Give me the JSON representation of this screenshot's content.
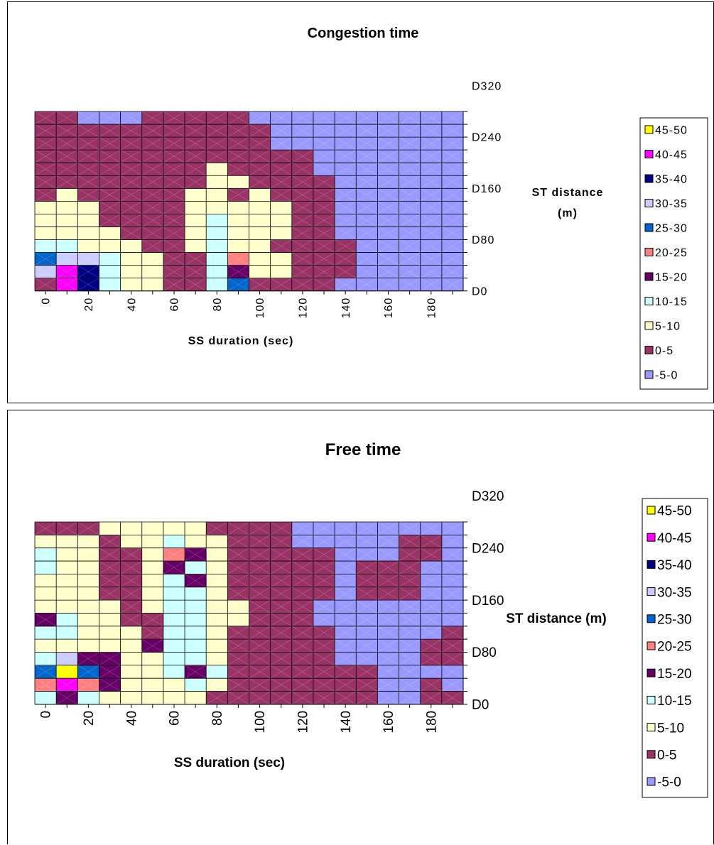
{
  "chart_data": [
    {
      "type": "heatmap",
      "title": "Congestion time",
      "xlabel": "SS duration (sec)",
      "ylabel": "ST distance (m)",
      "x": [
        0,
        10,
        20,
        30,
        40,
        50,
        60,
        70,
        80,
        90,
        100,
        110,
        120,
        130,
        140,
        150,
        160,
        170,
        180,
        190
      ],
      "x_tick_labels": [
        "0",
        "20",
        "40",
        "60",
        "80",
        "100",
        "120",
        "140",
        "160",
        "180"
      ],
      "y_tick_labels": [
        "D0",
        "D80",
        "D160",
        "D240",
        "D320"
      ],
      "legend": [
        "45-50",
        "40-45",
        "35-40",
        "30-35",
        "25-30",
        "20-25",
        "15-20",
        "10-15",
        "5-10",
        "0-5",
        "-5-0"
      ],
      "legend_position": "right",
      "grid": true,
      "z_bands": [
        [
          9,
          1,
          2,
          7,
          8,
          8,
          9,
          9,
          7,
          4,
          9,
          9,
          9,
          9,
          10,
          10,
          10,
          10,
          10,
          10
        ],
        [
          3,
          1,
          2,
          7,
          8,
          8,
          9,
          9,
          7,
          6,
          8,
          8,
          9,
          9,
          9,
          10,
          10,
          10,
          10,
          10
        ],
        [
          4,
          3,
          3,
          7,
          8,
          8,
          9,
          9,
          7,
          5,
          8,
          8,
          9,
          9,
          9,
          10,
          10,
          10,
          10,
          10
        ],
        [
          7,
          7,
          8,
          8,
          8,
          9,
          9,
          8,
          7,
          8,
          8,
          9,
          9,
          9,
          9,
          10,
          10,
          10,
          10,
          10
        ],
        [
          8,
          8,
          8,
          8,
          9,
          9,
          9,
          8,
          7,
          8,
          8,
          8,
          9,
          9,
          10,
          10,
          10,
          10,
          10,
          10
        ],
        [
          8,
          8,
          8,
          9,
          9,
          9,
          9,
          8,
          7,
          8,
          8,
          8,
          9,
          9,
          10,
          10,
          10,
          10,
          10,
          10
        ],
        [
          8,
          8,
          8,
          9,
          9,
          9,
          9,
          8,
          8,
          8,
          8,
          8,
          9,
          9,
          10,
          10,
          10,
          10,
          10,
          10
        ],
        [
          9,
          8,
          9,
          9,
          9,
          9,
          9,
          8,
          8,
          9,
          8,
          9,
          9,
          9,
          10,
          10,
          10,
          10,
          10,
          10
        ],
        [
          9,
          9,
          9,
          9,
          9,
          9,
          9,
          9,
          8,
          8,
          9,
          9,
          9,
          9,
          10,
          10,
          10,
          10,
          10,
          10
        ],
        [
          9,
          9,
          9,
          9,
          9,
          9,
          9,
          9,
          8,
          9,
          9,
          9,
          9,
          10,
          10,
          10,
          10,
          10,
          10,
          10
        ],
        [
          9,
          9,
          9,
          9,
          9,
          9,
          9,
          9,
          9,
          9,
          9,
          9,
          9,
          10,
          10,
          10,
          10,
          10,
          10,
          10
        ],
        [
          9,
          9,
          9,
          9,
          9,
          9,
          9,
          9,
          9,
          9,
          9,
          10,
          10,
          10,
          10,
          10,
          10,
          10,
          10,
          10
        ],
        [
          9,
          9,
          9,
          9,
          9,
          9,
          9,
          9,
          9,
          9,
          9,
          10,
          10,
          10,
          10,
          10,
          10,
          10,
          10,
          10
        ],
        [
          9,
          9,
          10,
          10,
          10,
          9,
          9,
          9,
          9,
          9,
          10,
          10,
          10,
          10,
          10,
          10,
          10,
          10,
          10,
          10
        ]
      ]
    },
    {
      "type": "heatmap",
      "title": "Free time",
      "xlabel": "SS duration (sec)",
      "ylabel": "ST distance (m)",
      "x": [
        0,
        10,
        20,
        30,
        40,
        50,
        60,
        70,
        80,
        90,
        100,
        110,
        120,
        130,
        140,
        150,
        160,
        170,
        180,
        190
      ],
      "x_tick_labels": [
        "0",
        "20",
        "40",
        "60",
        "80",
        "100",
        "120",
        "140",
        "160",
        "180"
      ],
      "y_tick_labels": [
        "D0",
        "D80",
        "D160",
        "D240",
        "D320"
      ],
      "legend": [
        "45-50",
        "40-45",
        "35-40",
        "30-35",
        "25-30",
        "20-25",
        "15-20",
        "10-15",
        "5-10",
        "0-5",
        "-5-0"
      ],
      "legend_position": "right",
      "grid": true,
      "z_bands": [
        [
          7,
          6,
          7,
          8,
          8,
          8,
          8,
          8,
          9,
          9,
          9,
          9,
          9,
          9,
          9,
          9,
          10,
          10,
          9,
          9
        ],
        [
          5,
          1,
          5,
          6,
          8,
          8,
          8,
          7,
          8,
          9,
          9,
          9,
          9,
          9,
          9,
          9,
          10,
          10,
          9,
          10
        ],
        [
          4,
          0,
          4,
          6,
          8,
          8,
          7,
          6,
          7,
          9,
          9,
          9,
          9,
          9,
          9,
          9,
          10,
          10,
          10,
          10
        ],
        [
          7,
          3,
          6,
          6,
          8,
          8,
          7,
          7,
          8,
          9,
          9,
          9,
          9,
          9,
          10,
          10,
          10,
          10,
          9,
          9
        ],
        [
          8,
          8,
          8,
          8,
          8,
          6,
          7,
          7,
          8,
          9,
          9,
          9,
          9,
          9,
          10,
          10,
          10,
          10,
          9,
          9
        ],
        [
          7,
          7,
          8,
          8,
          8,
          9,
          7,
          7,
          8,
          9,
          9,
          9,
          9,
          9,
          10,
          10,
          10,
          10,
          10,
          9
        ],
        [
          6,
          7,
          8,
          8,
          9,
          9,
          7,
          7,
          8,
          8,
          9,
          9,
          9,
          10,
          10,
          10,
          10,
          10,
          10,
          10
        ],
        [
          8,
          8,
          8,
          8,
          9,
          8,
          7,
          7,
          8,
          8,
          9,
          9,
          9,
          10,
          10,
          10,
          10,
          10,
          10,
          10
        ],
        [
          8,
          8,
          8,
          9,
          9,
          8,
          7,
          7,
          8,
          9,
          9,
          9,
          9,
          9,
          10,
          9,
          9,
          9,
          10,
          10
        ],
        [
          8,
          8,
          8,
          9,
          9,
          8,
          7,
          6,
          8,
          9,
          9,
          9,
          9,
          9,
          10,
          9,
          9,
          9,
          10,
          10
        ],
        [
          7,
          8,
          8,
          9,
          9,
          8,
          6,
          7,
          8,
          9,
          9,
          9,
          9,
          9,
          10,
          9,
          9,
          9,
          10,
          10
        ],
        [
          7,
          8,
          8,
          9,
          9,
          8,
          5,
          6,
          8,
          9,
          9,
          9,
          9,
          9,
          10,
          10,
          10,
          9,
          9,
          10
        ],
        [
          8,
          8,
          8,
          9,
          8,
          8,
          7,
          8,
          8,
          9,
          9,
          9,
          10,
          10,
          10,
          10,
          10,
          9,
          9,
          10
        ],
        [
          9,
          9,
          9,
          8,
          8,
          8,
          8,
          8,
          9,
          9,
          9,
          9,
          10,
          10,
          10,
          10,
          10,
          10,
          10,
          10
        ]
      ]
    }
  ],
  "legend_colors": [
    "#ffff00",
    "#ff00ff",
    "#000080",
    "#ccccff",
    "#0066cc",
    "#ff8080",
    "#660066",
    "#ccffff",
    "#ffffcc",
    "#993366",
    "#9999ff"
  ]
}
